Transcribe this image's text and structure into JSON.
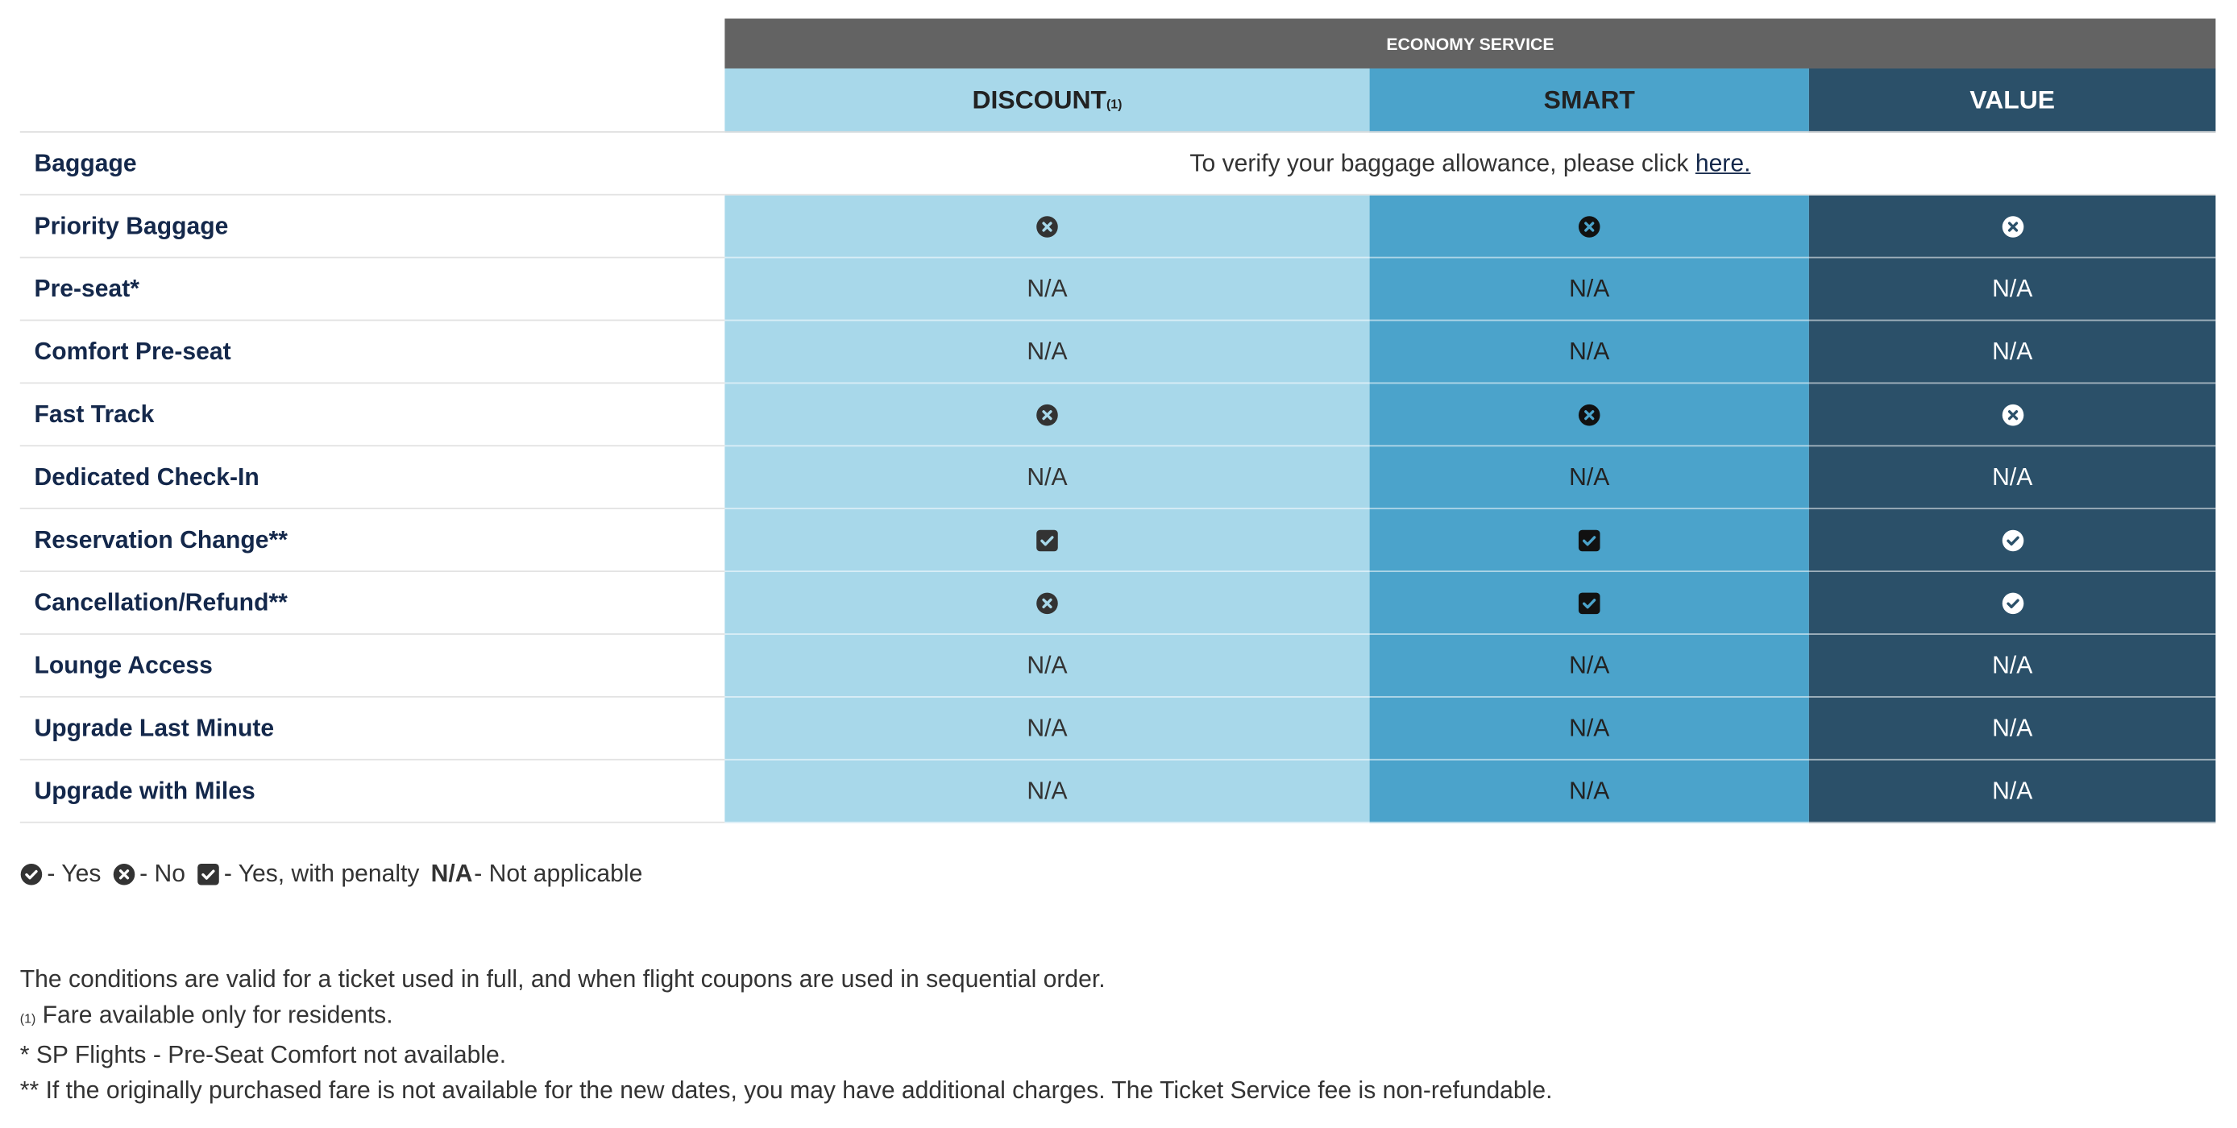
{
  "header": {
    "title": "ECONOMY SERVICE"
  },
  "columns": [
    {
      "name": "DISCOUNT",
      "note": "(1)",
      "color": "#a8d8ea",
      "text_color": "#333333"
    },
    {
      "name": "SMART",
      "color": "#4ba3cb",
      "text_color": "#222222"
    },
    {
      "name": "VALUE",
      "color": "#2b5069",
      "text_color": "#ffffff"
    }
  ],
  "baggage_row": {
    "label": "Baggage",
    "text": "To verify your baggage allowance, please click ",
    "link": "here."
  },
  "rows": [
    {
      "label": "Priority Baggage",
      "cells": [
        {
          "icon": "times-circle"
        },
        {
          "icon": "times-circle"
        },
        {
          "icon": "times-circle"
        }
      ]
    },
    {
      "label": "Pre-seat*",
      "cells": [
        "N/A",
        "N/A",
        "N/A"
      ]
    },
    {
      "label": "Comfort Pre-seat",
      "cells": [
        "N/A",
        "N/A",
        "N/A"
      ]
    },
    {
      "label": "Fast Track",
      "cells": [
        {
          "icon": "times-circle"
        },
        {
          "icon": "times-circle"
        },
        {
          "icon": "times-circle"
        }
      ]
    },
    {
      "label": "Dedicated Check-In",
      "cells": [
        "N/A",
        "N/A",
        "N/A"
      ]
    },
    {
      "label": "Reservation Change**",
      "cells": [
        {
          "icon": "check-square"
        },
        {
          "icon": "check-square"
        },
        {
          "icon": "check-circle"
        }
      ]
    },
    {
      "label": "Cancellation/Refund**",
      "cells": [
        {
          "icon": "times-circle"
        },
        {
          "icon": "check-square"
        },
        {
          "icon": "check-circle"
        }
      ]
    },
    {
      "label": "Lounge Access",
      "cells": [
        "N/A",
        "N/A",
        "N/A"
      ]
    },
    {
      "label": "Upgrade Last Minute",
      "cells": [
        "N/A",
        "N/A",
        "N/A"
      ]
    },
    {
      "label": "Upgrade with Miles",
      "cells": [
        "N/A",
        "N/A",
        "N/A"
      ]
    }
  ],
  "legend": [
    {
      "icon": "check-circle",
      "label": "- Yes"
    },
    {
      "icon": "times-circle",
      "label": "- No"
    },
    {
      "icon": "check-square",
      "label": "- Yes, with penalty"
    },
    {
      "key": "N/A",
      "label": "- Not applicable"
    }
  ],
  "footnotes": [
    {
      "text": "The conditions are valid for a ticket used in full, and when flight coupons are used in sequential order."
    },
    {
      "note": "(1)",
      "text": "Fare available only for residents."
    },
    {
      "text": "* SP Flights - Pre-Seat Comfort not available."
    },
    {
      "text": "** If the originally purchased fare is not available for the new dates, you may have additional charges. The Ticket Service fee is non-refundable."
    }
  ]
}
